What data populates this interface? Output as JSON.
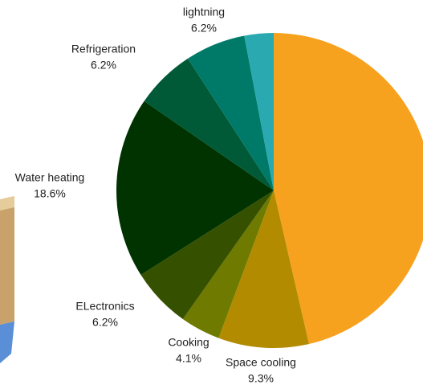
{
  "chart_data": {
    "type": "pie",
    "categories": [
      null,
      "Space cooling",
      "Cooking",
      "ELectronics",
      "Water heating",
      "Refrigeration",
      "lightning",
      null
    ],
    "values": [
      46.4,
      9.3,
      4.1,
      6.2,
      18.6,
      6.2,
      6.2,
      3.0
    ],
    "value_labels": [
      null,
      "9.3%",
      "4.1%",
      "6.2%",
      "18.6%",
      "6.2%",
      "6.2%",
      null
    ],
    "colors": [
      "#f7a21e",
      "#b38b00",
      "#6e7a00",
      "#355100",
      "#003300",
      "#005a38",
      "#007a68",
      "#2aaab0"
    ]
  }
}
